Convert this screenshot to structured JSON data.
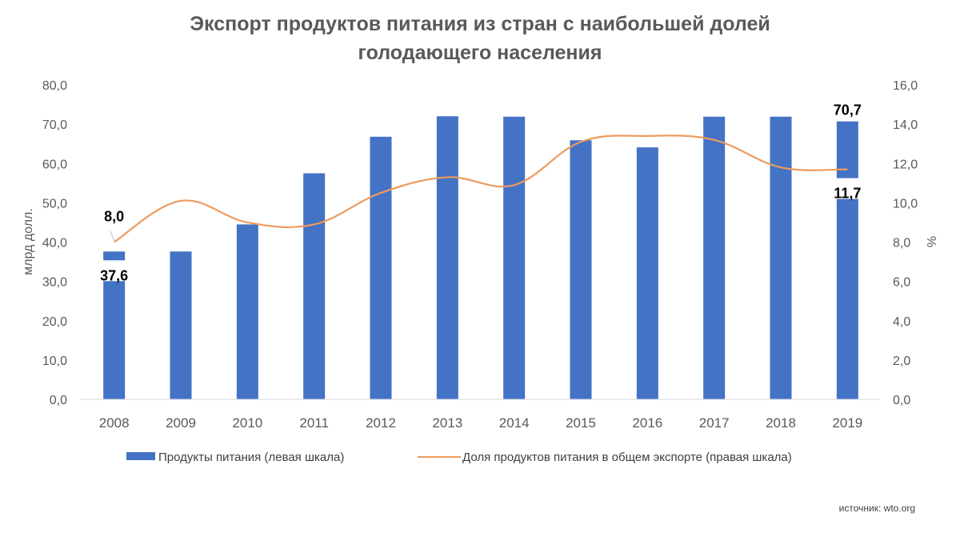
{
  "chart_data": {
    "type": "bar",
    "title_line1": "Экспорт продуктов питания из стран с наибольшей долей",
    "title_line2": "голодающего населения",
    "categories": [
      "2008",
      "2009",
      "2010",
      "2011",
      "2012",
      "2013",
      "2014",
      "2015",
      "2016",
      "2017",
      "2018",
      "2019"
    ],
    "series": [
      {
        "name": "Продукты питания (левая шкала)",
        "type": "bar",
        "axis": "left",
        "color": "#4472C4",
        "values": [
          37.6,
          37.6,
          44.5,
          57.5,
          66.8,
          72.0,
          71.9,
          65.9,
          64.1,
          71.9,
          71.9,
          70.7
        ]
      },
      {
        "name": "Доля продуктов питания в общем экспорте (правая шкала)",
        "type": "line",
        "axis": "right",
        "color": "#ED9B5E",
        "values": [
          8.0,
          10.1,
          9.0,
          8.9,
          10.5,
          11.3,
          10.9,
          13.1,
          13.4,
          13.2,
          11.8,
          11.7
        ]
      }
    ],
    "ylabel": "млрд долл.",
    "ylabel_right": "%",
    "ylim": [
      0,
      80
    ],
    "ylim_right": [
      0,
      16
    ],
    "yticks": [
      "0,0",
      "10,0",
      "20,0",
      "30,0",
      "40,0",
      "50,0",
      "60,0",
      "70,0",
      "80,0"
    ],
    "yticks_right": [
      "0,0",
      "2,0",
      "4,0",
      "6,0",
      "8,0",
      "10,0",
      "12,0",
      "14,0",
      "16,0"
    ],
    "data_labels": [
      {
        "series": 0,
        "index": 0,
        "text": "37,6"
      },
      {
        "series": 0,
        "index": 11,
        "text": "70,7"
      },
      {
        "series": 1,
        "index": 0,
        "text": "8,0"
      },
      {
        "series": 1,
        "index": 11,
        "text": "11,7"
      }
    ],
    "grid": false,
    "legend_position": "bottom"
  },
  "source": "источник: wto.org"
}
